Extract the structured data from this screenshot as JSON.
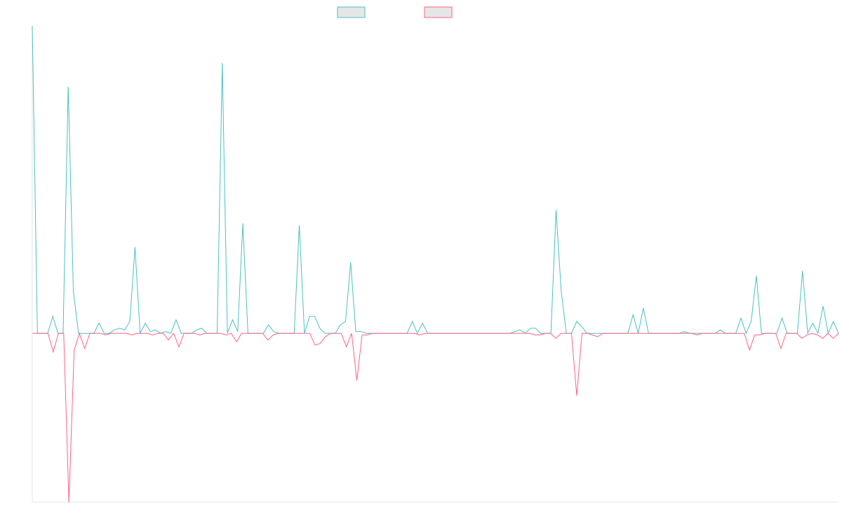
{
  "chart_data": {
    "type": "line",
    "title": "",
    "xlabel": "",
    "ylabel": "",
    "grid": false,
    "legend": "top-center",
    "ylim": [
      -100,
      182
    ],
    "series": [
      {
        "color": "#4bc0c0",
        "values": [
          182,
          0,
          0,
          0,
          10,
          0,
          0,
          146,
          25,
          0,
          0,
          0,
          0,
          6,
          0,
          0,
          2,
          3,
          2,
          7,
          51,
          0,
          6,
          1,
          2,
          0,
          1,
          0,
          8,
          0,
          0,
          0,
          2,
          3,
          0,
          0,
          0,
          160,
          0,
          8,
          1,
          65,
          0,
          0,
          0,
          0,
          5,
          1,
          0,
          0,
          0,
          0,
          64,
          0,
          10,
          10,
          3,
          0,
          0,
          0,
          5,
          7,
          42,
          1,
          1,
          0,
          0,
          0,
          0,
          0,
          0,
          0,
          0,
          0,
          7,
          0,
          6,
          0,
          0,
          0,
          0,
          0,
          0,
          0,
          0,
          0,
          0,
          0,
          0,
          0,
          0,
          0,
          0,
          0,
          1,
          2,
          0,
          3,
          3,
          0,
          0,
          0,
          73,
          25,
          0,
          0,
          7,
          4,
          0,
          0,
          0,
          0,
          0,
          0,
          0,
          0,
          0,
          11,
          0,
          15,
          0,
          0,
          0,
          0,
          0,
          0,
          0,
          1,
          0,
          0,
          0,
          0,
          0,
          0,
          2,
          0,
          0,
          0,
          9,
          0,
          7,
          34,
          0,
          0,
          0,
          0,
          9,
          0,
          0,
          0,
          37,
          0,
          6,
          0,
          16,
          0,
          7,
          0
        ]
      },
      {
        "color": "#ff6384",
        "values": [
          0,
          0,
          0,
          0,
          -11,
          0,
          0,
          -100,
          -10,
          0,
          -9,
          0,
          0,
          0,
          -1,
          0,
          0,
          0,
          0,
          -1,
          0,
          0,
          0,
          -1,
          0,
          0,
          -4,
          0,
          -8,
          0,
          0,
          0,
          -1,
          0,
          0,
          0,
          0,
          -1,
          0,
          -5,
          0,
          0,
          0,
          0,
          0,
          -4,
          -1,
          0,
          0,
          0,
          0,
          0,
          0,
          0,
          -7,
          -6,
          -2,
          0,
          0,
          0,
          -8,
          0,
          -28,
          -1,
          -1,
          0,
          0,
          0,
          0,
          0,
          0,
          0,
          0,
          0,
          -1,
          0,
          0,
          0,
          0,
          0,
          0,
          0,
          0,
          0,
          0,
          0,
          0,
          0,
          0,
          0,
          0,
          0,
          0,
          0,
          0,
          0,
          -1,
          -1,
          0,
          0,
          -3,
          0,
          0,
          0,
          -37,
          0,
          0,
          -1,
          -2,
          0,
          0,
          0,
          0,
          0,
          0,
          0,
          0,
          0,
          0,
          0,
          0,
          0,
          0,
          0,
          0,
          0,
          0,
          -1,
          0,
          0,
          0,
          0,
          0,
          0,
          0,
          0,
          0,
          -10,
          -1,
          -1,
          0,
          0,
          0,
          -9,
          0,
          0,
          0,
          -3,
          -1,
          0,
          -1,
          -3,
          0,
          -3,
          0
        ]
      }
    ]
  }
}
